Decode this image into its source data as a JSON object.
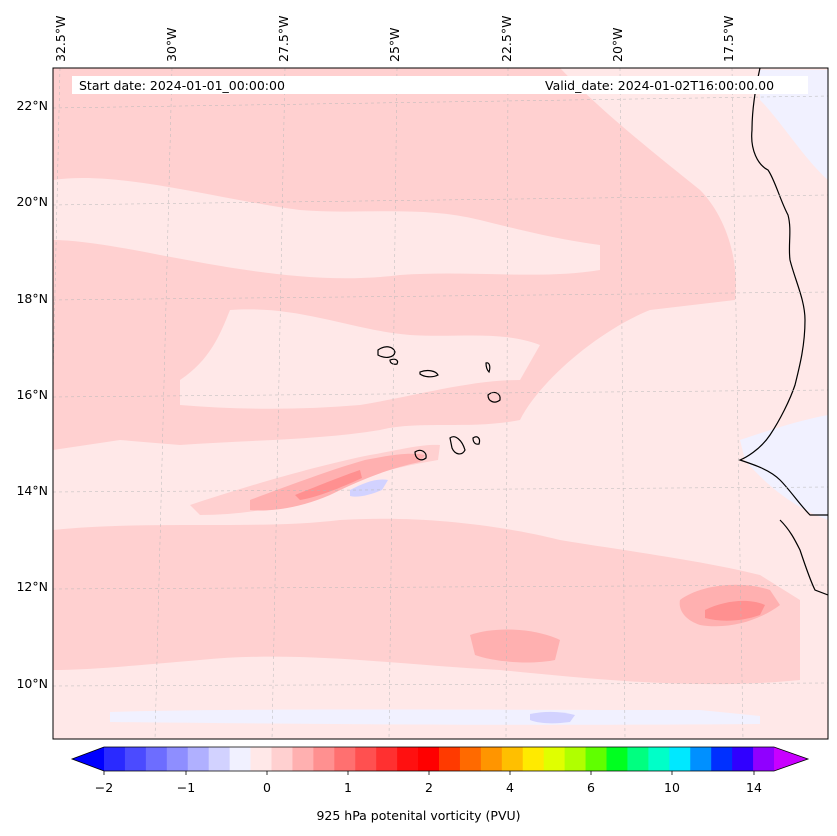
{
  "header": {
    "start_date": "Start date: 2024-01-01_00:00:00",
    "valid_date": "Valid_date: 2024-01-02T16:00:00.00"
  },
  "longitude_labels": [
    "32.5°W",
    "30°W",
    "27.5°W",
    "25°W",
    "22.5°W",
    "20°W",
    "17.5°W"
  ],
  "latitude_labels": [
    "22°N",
    "20°N",
    "18°N",
    "16°N",
    "14°N",
    "12°N",
    "10°N"
  ],
  "colorbar": {
    "label": "925 hPa potenital vorticity (PVU)",
    "tick_labels": [
      "−2",
      "−1",
      "0",
      "1",
      "2",
      "4",
      "6",
      "10",
      "14"
    ],
    "colors": [
      "#0000ff",
      "#2a2aff",
      "#4b4bff",
      "#6d6dff",
      "#8e8eff",
      "#b0b0ff",
      "#d2d2ff",
      "#f1f1ff",
      "#ffe8e8",
      "#ffd0d0",
      "#ffb0b0",
      "#ff9090",
      "#ff7070",
      "#ff5050",
      "#ff3030",
      "#ff1010",
      "#ff0000",
      "#ff3a00",
      "#ff6a00",
      "#ff9500",
      "#ffbf00",
      "#ffea00",
      "#e0ff00",
      "#b0ff00",
      "#60ff00",
      "#00ff20",
      "#00ff80",
      "#00ffc8",
      "#00e8ff",
      "#0090ff",
      "#0030ff",
      "#3000ff",
      "#9000ff",
      "#c800ff"
    ]
  },
  "colors": {
    "background_field": "#ffe8e8",
    "light_positive": "#ffd0d0",
    "medium_positive": "#ffb0b0",
    "strong_positive": "#ff9090",
    "negative": "#d2d2ff",
    "faint_negative": "#f1f1ff",
    "coastline": "#000000"
  }
}
